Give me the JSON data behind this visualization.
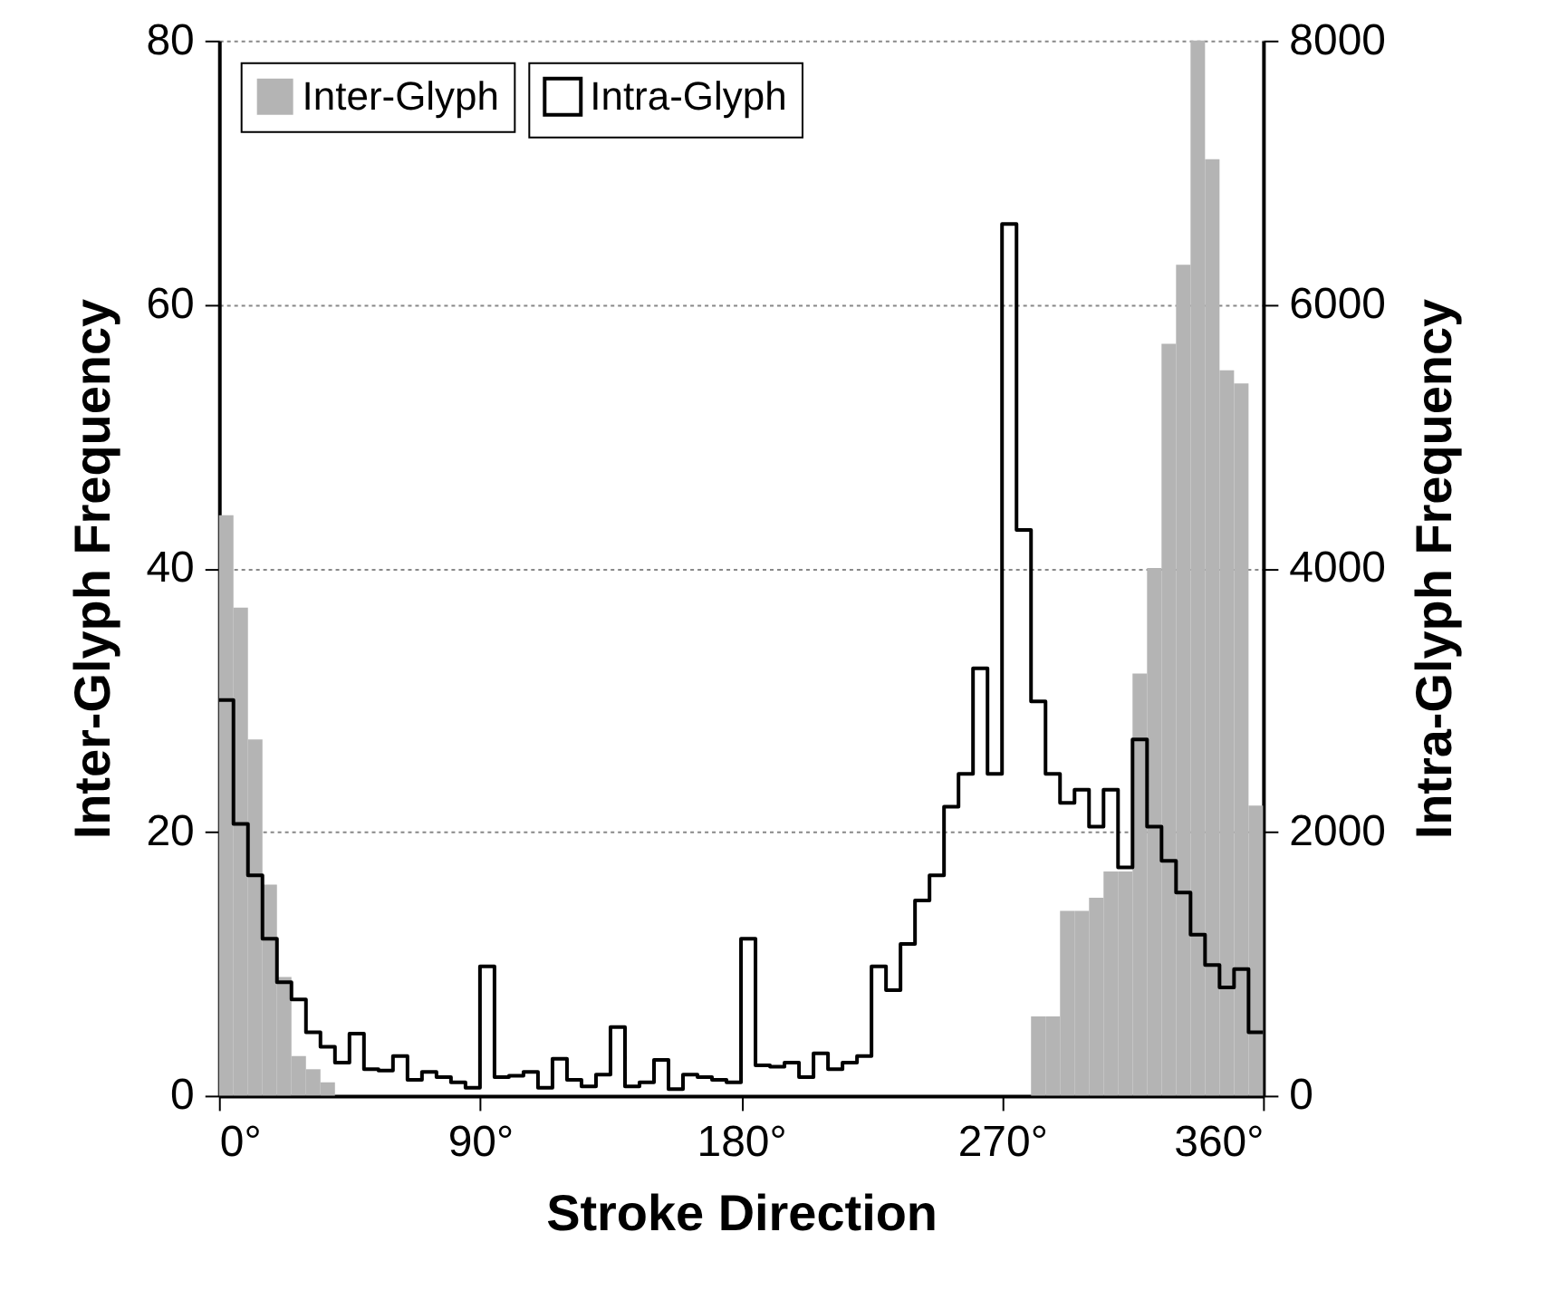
{
  "chart_data": {
    "type": "histogram",
    "xlabel": "Stroke Direction",
    "ylabel": "Inter-Glyph Frequency",
    "y2label": "Intra-Glyph Frequency",
    "bins": [
      0,
      5,
      10,
      15,
      20,
      25,
      30,
      35,
      40,
      45,
      50,
      55,
      60,
      65,
      70,
      75,
      80,
      85,
      90,
      95,
      100,
      105,
      110,
      115,
      120,
      125,
      130,
      135,
      140,
      145,
      150,
      155,
      160,
      165,
      170,
      175,
      180,
      185,
      190,
      195,
      200,
      205,
      210,
      215,
      220,
      225,
      230,
      235,
      240,
      245,
      250,
      255,
      260,
      265,
      270,
      275,
      280,
      285,
      290,
      295,
      300,
      305,
      310,
      315,
      320,
      325,
      330,
      335,
      340,
      345,
      350,
      355,
      360
    ],
    "series": [
      {
        "name": "Inter-Glyph",
        "type": "histogram",
        "color": "#b4b4b4",
        "values": [
          44,
          37,
          27,
          16,
          9,
          3,
          2,
          1,
          0,
          0,
          0,
          0,
          0,
          0,
          0,
          0,
          0,
          0,
          0,
          0,
          0,
          0,
          0,
          0,
          0,
          0,
          0,
          0,
          0,
          0,
          0,
          0,
          0,
          0,
          0,
          0,
          0,
          0,
          0,
          0,
          0,
          0,
          0,
          0,
          0,
          0,
          0,
          0,
          0,
          0,
          0,
          0,
          0,
          0,
          0,
          0,
          6,
          6,
          14,
          14,
          15,
          17,
          17,
          32,
          40,
          57,
          63,
          80,
          71,
          55,
          54,
          22
        ]
      },
      {
        "name": "Intra-Glyph",
        "type": "step",
        "axis": "y2",
        "color": "#000000",
        "x": [
          0,
          5,
          10,
          15,
          20,
          25,
          30,
          35,
          40,
          45,
          50,
          55,
          60,
          65,
          70,
          75,
          80,
          85,
          90,
          95,
          100,
          105,
          110,
          115,
          120,
          125,
          130,
          135,
          140,
          145,
          150,
          155,
          160,
          165,
          170,
          175,
          180,
          185,
          190,
          195,
          200,
          205,
          210,
          215,
          220,
          225,
          230,
          235,
          240,
          245,
          250,
          255,
          260,
          265,
          270,
          275,
          280,
          285,
          290,
          295,
          300,
          305,
          310,
          315,
          320,
          325,
          330,
          335,
          340,
          345,
          350,
          355,
          360
        ],
        "values": [
          3000,
          2060,
          1670,
          1190,
          860,
          730,
          480,
          370,
          250,
          470,
          200,
          190,
          300,
          120,
          180,
          140,
          100,
          60,
          980,
          140,
          150,
          180,
          60,
          280,
          120,
          70,
          160,
          520,
          70,
          100,
          270,
          50,
          160,
          140,
          120,
          100,
          1190,
          230,
          220,
          250,
          140,
          320,
          200,
          250,
          300,
          980,
          800,
          1150,
          1480,
          1670,
          2190,
          2440,
          3240,
          2440,
          6610,
          4290,
          2990,
          2440,
          2220,
          2320,
          2040,
          2320,
          1730,
          2700,
          2040,
          1780,
          1540,
          1220,
          990,
          820,
          960,
          480,
          480
        ]
      }
    ],
    "xlim": [
      0,
      360
    ],
    "xticks": [
      {
        "value": 0,
        "label": "0°"
      },
      {
        "value": 90,
        "label": "90°"
      },
      {
        "value": 180,
        "label": "180°"
      },
      {
        "value": 270,
        "label": "270°"
      },
      {
        "value": 360,
        "label": "360°"
      }
    ],
    "ylim": [
      0,
      80
    ],
    "yticks": [
      0,
      20,
      40,
      60,
      80
    ],
    "y2lim": [
      0,
      8000
    ],
    "y2ticks": [
      0,
      2000,
      4000,
      6000,
      8000
    ],
    "grid": "y",
    "legend": "top left"
  }
}
